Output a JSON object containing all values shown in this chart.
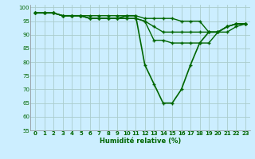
{
  "xlabel": "Humidité relative (%)",
  "background_color": "#cceeff",
  "grid_color": "#aacccc",
  "line_color": "#006600",
  "ylim": [
    55,
    101
  ],
  "xlim": [
    -0.5,
    23.5
  ],
  "yticks": [
    55,
    60,
    65,
    70,
    75,
    80,
    85,
    90,
    95,
    100
  ],
  "xticks": [
    0,
    1,
    2,
    3,
    4,
    5,
    6,
    7,
    8,
    9,
    10,
    11,
    12,
    13,
    14,
    15,
    16,
    17,
    18,
    19,
    20,
    21,
    22,
    23
  ],
  "series": [
    [
      98,
      98,
      98,
      97,
      97,
      97,
      97,
      97,
      97,
      97,
      97,
      97,
      96,
      96,
      96,
      96,
      95,
      95,
      95,
      91,
      91,
      93,
      94,
      94
    ],
    [
      98,
      98,
      98,
      97,
      97,
      97,
      96,
      96,
      96,
      96,
      96,
      96,
      95,
      93,
      91,
      91,
      91,
      91,
      91,
      91,
      91,
      93,
      94,
      94
    ],
    [
      98,
      98,
      98,
      97,
      97,
      97,
      96,
      96,
      96,
      96,
      96,
      96,
      95,
      88,
      88,
      87,
      87,
      87,
      87,
      87,
      91,
      91,
      93,
      94
    ],
    [
      98,
      98,
      98,
      97,
      97,
      97,
      96,
      96,
      96,
      96,
      97,
      97,
      79,
      72,
      65,
      65,
      70,
      79,
      87,
      91,
      91,
      93,
      94,
      94
    ]
  ]
}
